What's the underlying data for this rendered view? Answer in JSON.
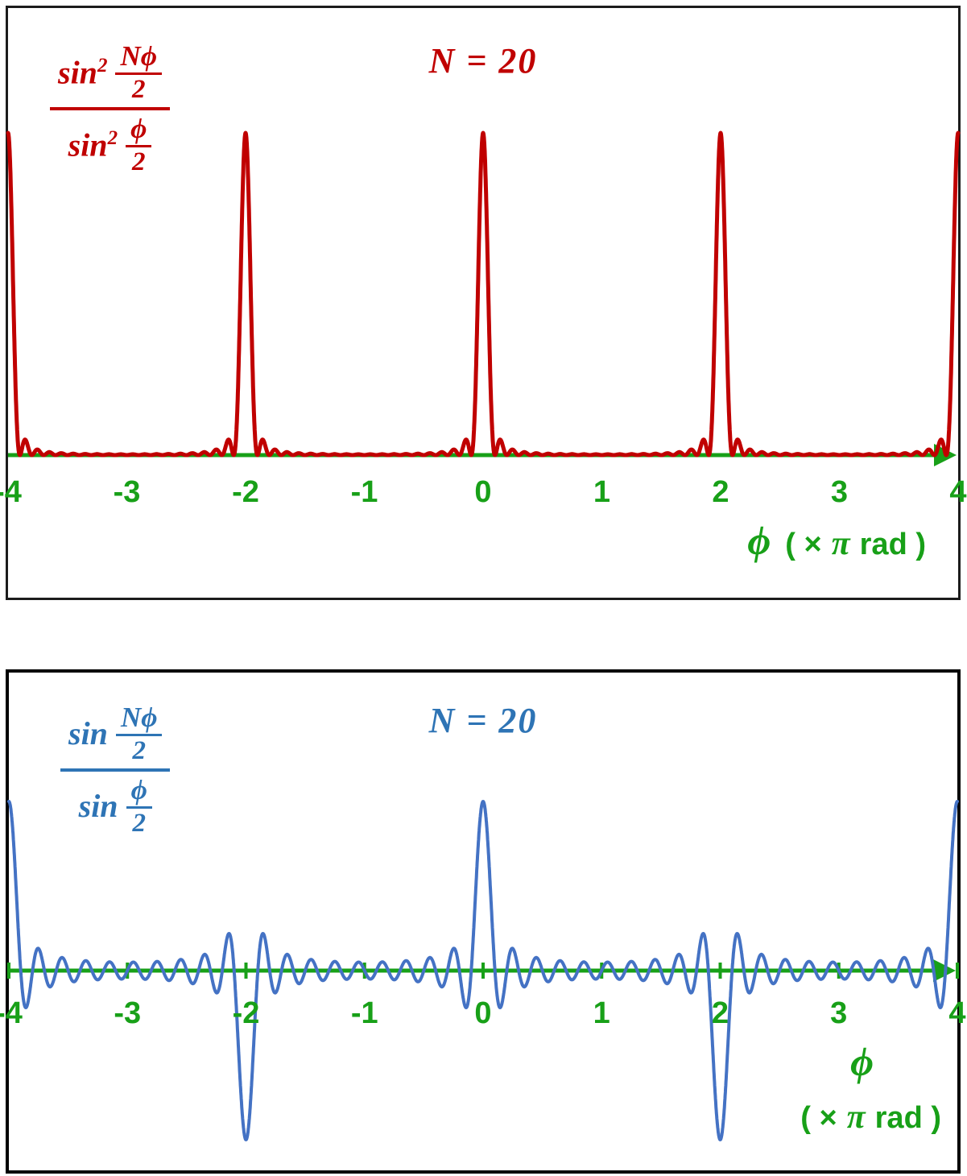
{
  "chart_data": [
    {
      "type": "line",
      "title": "N = 20",
      "N": 20,
      "squared": true,
      "function": "y = sin²(Nϕ/2) / sin²(ϕ/2)",
      "formula": {
        "fn": "sin",
        "exp": "2",
        "num_top": "Nϕ",
        "num_bot": "2",
        "den_top": "ϕ",
        "den_bot": "2"
      },
      "x_range": [
        -4,
        4
      ],
      "x_unit": "π rad",
      "y_range": [
        0,
        400
      ],
      "peak_value": 400,
      "peak_positions_pi": [
        -4,
        -2,
        0,
        2,
        4
      ],
      "x_ticks": [
        "-4",
        "-3",
        "-2",
        "-1",
        "0",
        "1",
        "2",
        "3",
        "4"
      ],
      "xlabel": {
        "phi": "ϕ",
        "open": "( ×",
        "pi": "π",
        "close": "rad )"
      },
      "colors": {
        "curve": "#C00000",
        "text": "#C00000",
        "axis": "#18A018"
      },
      "grid": false,
      "legend": "none"
    },
    {
      "type": "line",
      "title": "N = 20",
      "N": 20,
      "squared": false,
      "function": "y = sin(Nϕ/2) / sin(ϕ/2)",
      "formula": {
        "fn": "sin",
        "exp": "",
        "num_top": "Nϕ",
        "num_bot": "2",
        "den_top": "ϕ",
        "den_bot": "2"
      },
      "x_range": [
        -4,
        4
      ],
      "x_unit": "π rad",
      "y_range": [
        -20,
        20
      ],
      "peak_value": 20,
      "peaks_up_pi": [
        -4,
        0,
        4
      ],
      "peaks_down_pi": [
        -2,
        2
      ],
      "x_ticks": [
        "-4",
        "-3",
        "-2",
        "-1",
        "0",
        "1",
        "2",
        "3",
        "4"
      ],
      "xlabel": {
        "phi": "ϕ",
        "open": "( ×",
        "pi": "π",
        "close": "rad )"
      },
      "colors": {
        "curve": "#4472C4",
        "text": "#2E74B5",
        "axis": "#18A018"
      },
      "grid": false,
      "legend": "none"
    }
  ]
}
